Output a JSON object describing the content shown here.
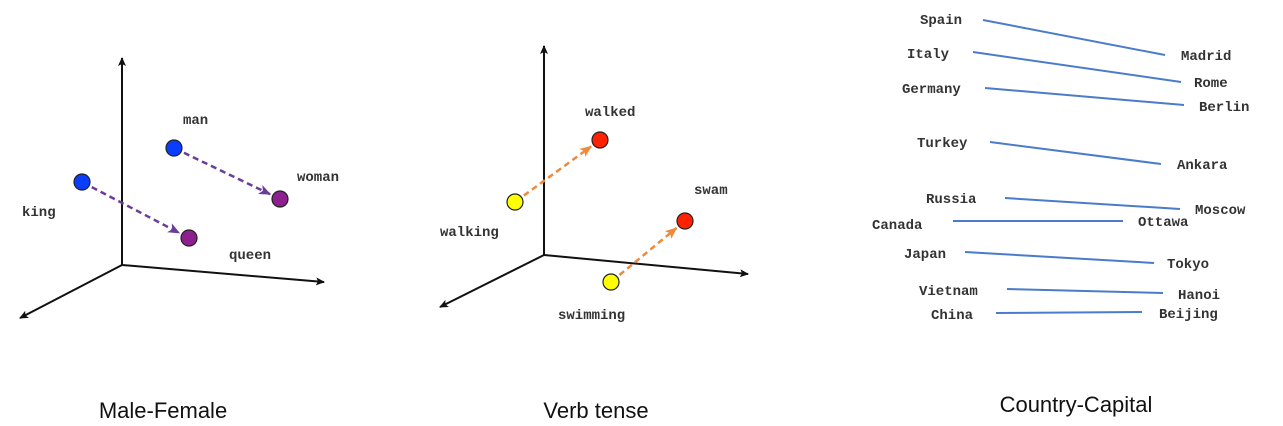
{
  "panels": [
    {
      "caption": "Male-Female",
      "arrow_color": "#6a3d9a",
      "points": [
        {
          "word": "king",
          "color": "#0b3dff"
        },
        {
          "word": "man",
          "color": "#0b3dff"
        },
        {
          "word": "woman",
          "color": "#8e1f8e"
        },
        {
          "word": "queen",
          "color": "#8e1f8e"
        }
      ],
      "pairs": [
        [
          "king",
          "queen"
        ],
        [
          "man",
          "woman"
        ]
      ]
    },
    {
      "caption": "Verb tense",
      "arrow_color": "#f08a3a",
      "points": [
        {
          "word": "walking",
          "color": "#ffff00"
        },
        {
          "word": "walked",
          "color": "#ff2200"
        },
        {
          "word": "swam",
          "color": "#ff2200"
        },
        {
          "word": "swimming",
          "color": "#ffff00"
        }
      ],
      "pairs": [
        [
          "walking",
          "walked"
        ],
        [
          "swimming",
          "swam"
        ]
      ]
    },
    {
      "caption": "Country-Capital",
      "line_color": "#4a7cc9",
      "pairs": [
        {
          "country": "Spain",
          "capital": "Madrid"
        },
        {
          "country": "Italy",
          "capital": "Rome"
        },
        {
          "country": "Germany",
          "capital": "Berlin"
        },
        {
          "country": "Turkey",
          "capital": "Ankara"
        },
        {
          "country": "Russia",
          "capital": "Moscow"
        },
        {
          "country": "Canada",
          "capital": "Ottawa"
        },
        {
          "country": "Japan",
          "capital": "Tokyo"
        },
        {
          "country": "Vietnam",
          "capital": "Hanoi"
        },
        {
          "country": "China",
          "capital": "Beijing"
        }
      ]
    }
  ]
}
